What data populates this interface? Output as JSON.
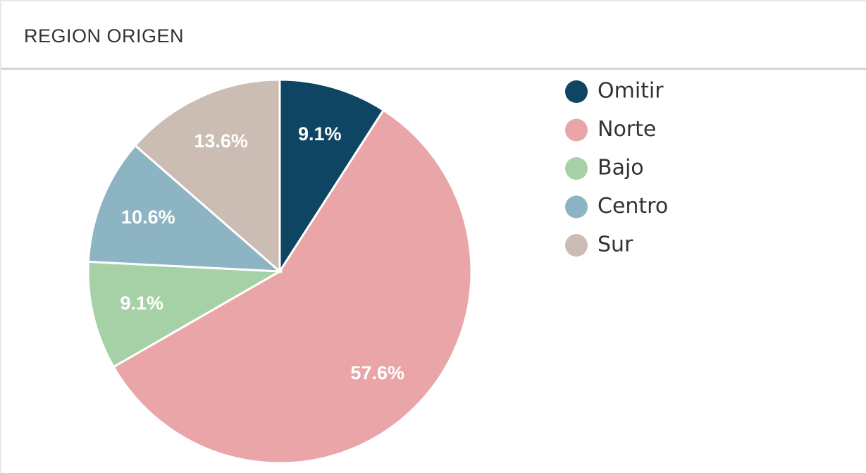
{
  "chart_data": {
    "type": "pie",
    "title": "REGION ORIGEN",
    "categories": [
      "Omitir",
      "Norte",
      "Bajo",
      "Centro",
      "Sur"
    ],
    "values": [
      9.1,
      57.6,
      9.1,
      10.6,
      13.6
    ],
    "value_labels": [
      "9.1%",
      "57.6%",
      "9.1%",
      "10.6%",
      "13.6%"
    ],
    "colors": [
      "#0d4563",
      "#e9a5a7",
      "#a6d1a6",
      "#8db4c2",
      "#cbbdb3"
    ],
    "legend": "right"
  }
}
